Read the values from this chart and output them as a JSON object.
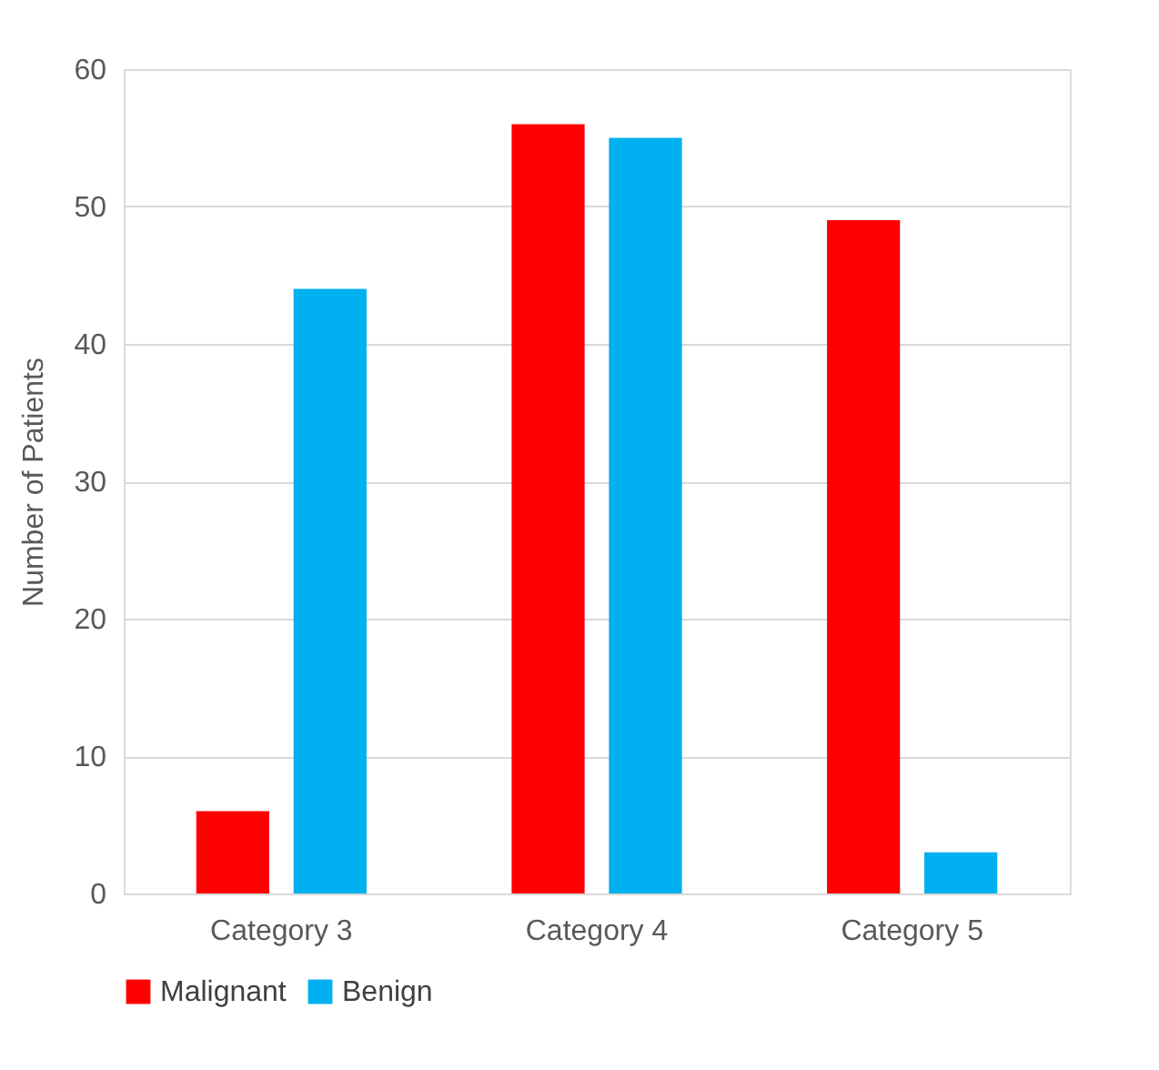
{
  "chart_data": {
    "type": "bar",
    "ylabel": "Number of Patients",
    "categories": [
      "Category 3",
      "Category 4",
      "Category 5"
    ],
    "series": [
      {
        "name": "Malignant",
        "color": "#ff0000",
        "values": [
          6,
          56,
          49
        ]
      },
      {
        "name": "Benign",
        "color": "#00b0f0",
        "values": [
          44,
          55,
          3
        ]
      }
    ],
    "ylim": [
      0,
      60
    ],
    "yticks": [
      0,
      10,
      20,
      30,
      40,
      50,
      60
    ],
    "grid": "y",
    "legend": "bottom"
  }
}
